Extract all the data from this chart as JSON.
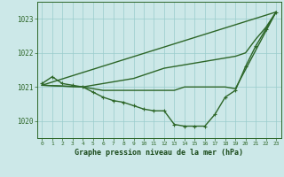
{
  "title": "Graphe pression niveau de la mer (hPa)",
  "background_color": "#cce8e8",
  "grid_color": "#99cccc",
  "line_color": "#2d6628",
  "ylim": [
    1019.5,
    1023.5
  ],
  "yticks": [
    1020,
    1021,
    1022,
    1023
  ],
  "xlim": [
    -0.5,
    23.5
  ],
  "series": [
    {
      "x": [
        0,
        1,
        2,
        3,
        4,
        5,
        6,
        7,
        8,
        9,
        10,
        11,
        12,
        13,
        14,
        15,
        16,
        17,
        18,
        19,
        20,
        21,
        22,
        23
      ],
      "y": [
        1021.1,
        1021.3,
        1021.1,
        1021.05,
        1021.0,
        1020.85,
        1020.7,
        1020.6,
        1020.55,
        1020.45,
        1020.35,
        1020.3,
        1020.3,
        1019.9,
        1019.85,
        1019.85,
        1019.85,
        1020.2,
        1020.7,
        1020.9,
        1021.6,
        1022.2,
        1022.7,
        1023.2
      ],
      "marker": true,
      "lw": 1.0
    },
    {
      "x": [
        0,
        23
      ],
      "y": [
        1021.05,
        1023.2
      ],
      "marker": false,
      "lw": 1.0
    },
    {
      "x": [
        0,
        4,
        5,
        6,
        7,
        8,
        9,
        10,
        11,
        12,
        13,
        14,
        15,
        16,
        17,
        18,
        19,
        20,
        21,
        22,
        23
      ],
      "y": [
        1021.05,
        1021.0,
        1021.05,
        1021.1,
        1021.15,
        1021.2,
        1021.25,
        1021.35,
        1021.45,
        1021.55,
        1021.6,
        1021.65,
        1021.7,
        1021.75,
        1021.8,
        1021.85,
        1021.9,
        1022.0,
        1022.4,
        1022.75,
        1023.2
      ],
      "marker": false,
      "lw": 1.0
    },
    {
      "x": [
        0,
        4,
        5,
        6,
        7,
        8,
        9,
        10,
        11,
        12,
        13,
        14,
        15,
        16,
        17,
        18,
        19,
        23
      ],
      "y": [
        1021.05,
        1021.0,
        1020.95,
        1020.9,
        1020.9,
        1020.9,
        1020.9,
        1020.9,
        1020.9,
        1020.9,
        1020.9,
        1021.0,
        1021.0,
        1021.0,
        1021.0,
        1021.0,
        1020.95,
        1023.2
      ],
      "marker": false,
      "lw": 1.0
    }
  ]
}
